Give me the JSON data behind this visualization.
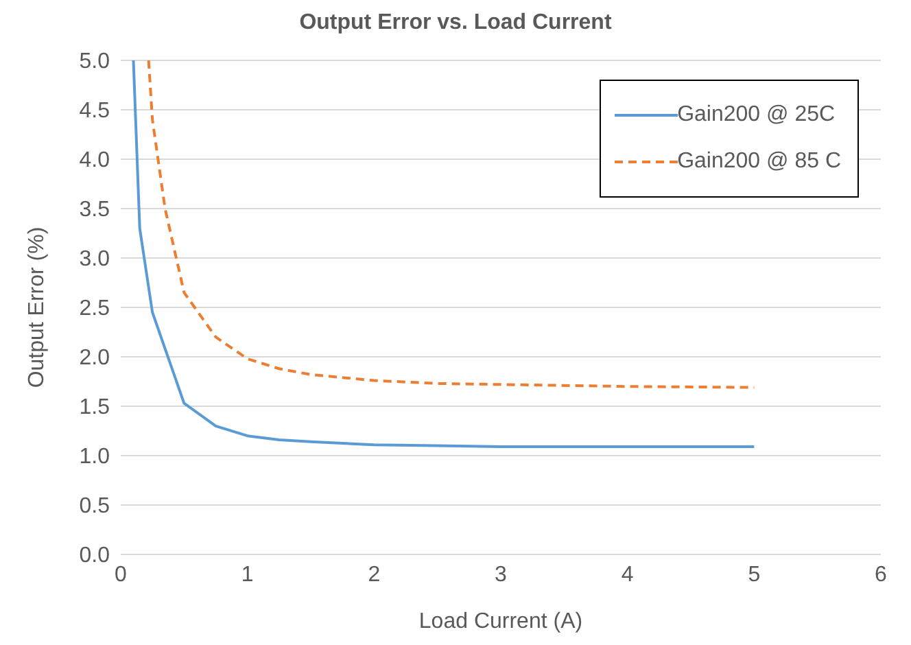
{
  "chart_data": {
    "type": "line",
    "title": "Output Error vs. Load Current",
    "xlabel": "Load Current (A)",
    "ylabel": "Output Error (%)",
    "series": [
      {
        "name": "Gain200 @ 25C",
        "color": "#5b9bd5",
        "line_style": "solid",
        "x": [
          0.1,
          0.15,
          0.25,
          0.5,
          0.75,
          1,
          1.25,
          1.5,
          2,
          2.5,
          3,
          4,
          5
        ],
        "values": [
          5,
          3.3,
          2.45,
          1.53,
          1.3,
          1.2,
          1.16,
          1.14,
          1.11,
          1.1,
          1.09,
          1.09,
          1.09
        ]
      },
      {
        "name": "Gain200 @ 85 C",
        "color": "#ed7d31",
        "line_style": "dashed",
        "x": [
          0.22,
          0.25,
          0.35,
          0.5,
          0.75,
          1,
          1.25,
          1.5,
          2,
          2.5,
          3,
          4,
          5
        ],
        "values": [
          5,
          4.4,
          3.5,
          2.65,
          2.2,
          1.98,
          1.88,
          1.82,
          1.76,
          1.73,
          1.72,
          1.7,
          1.69
        ]
      }
    ],
    "xlim": [
      0,
      6
    ],
    "xticks": [
      0,
      1,
      2,
      3,
      4,
      5,
      6
    ],
    "ylim": [
      0,
      5
    ],
    "yticks": [
      {
        "value": 0,
        "label": "0.0"
      },
      0.5,
      {
        "value": 1,
        "label": "1.0"
      },
      1.5,
      {
        "value": 2,
        "label": "2.0"
      },
      2.5,
      {
        "value": 3,
        "label": "3.0"
      },
      3.5,
      {
        "value": 4,
        "label": "4.0"
      },
      4.5,
      {
        "value": 5,
        "label": "5.0"
      }
    ],
    "grid": "y",
    "legend": "top right",
    "marker": "none"
  }
}
